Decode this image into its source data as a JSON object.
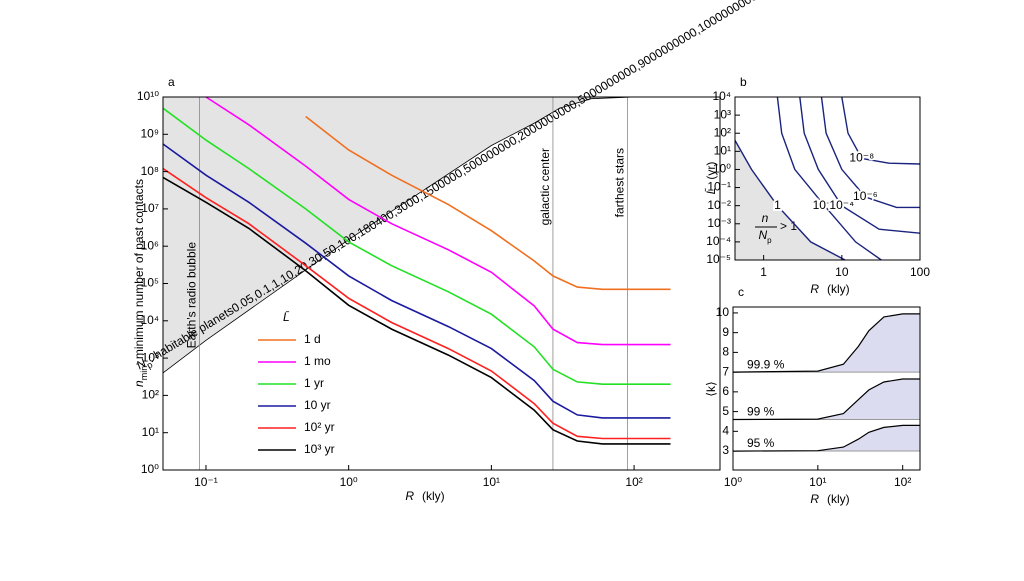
{
  "chart_data": [
    {
      "type": "line",
      "panel_label": "a",
      "xlabel": {
        "symbol": "R",
        "unit": "(kly)"
      },
      "ylabel": {
        "symbol": "n",
        "sub": "min",
        "text": ": minimum number of past contacts"
      },
      "xscale": "log",
      "yscale": "log",
      "xlim": [
        0.05,
        400
      ],
      "ylim": [
        1,
        10000000000
      ],
      "xticks": [
        {
          "value": 0.1,
          "label": "10⁻¹"
        },
        {
          "value": 1,
          "label": "10⁰"
        },
        {
          "value": 10,
          "label": "10¹"
        },
        {
          "value": 100,
          "label": "10²"
        }
      ],
      "yticks": [
        {
          "value": 1,
          "label": "10⁰"
        },
        {
          "value": 10,
          "label": "10¹"
        },
        {
          "value": 100,
          "label": "10²"
        },
        {
          "value": 1000,
          "label": "10³"
        },
        {
          "value": 10000,
          "label": "10⁴"
        },
        {
          "value": 100000,
          "label": "10⁵"
        },
        {
          "value": 1000000,
          "label": "10⁶"
        },
        {
          "value": 10000000,
          "label": "10⁷"
        },
        {
          "value": 100000000,
          "label": "10⁸"
        },
        {
          "value": 1000000000,
          "label": "10⁹"
        },
        {
          "value": 10000000000,
          "label": "10¹⁰"
        }
      ],
      "x": [
        0.05,
        0.1,
        0.2,
        0.5,
        1,
        2,
        5,
        10,
        20,
        27,
        40,
        60,
        100,
        180
      ],
      "legend_title": "L̄",
      "legend": "lower-left",
      "series": [
        {
          "name": "1 d",
          "color": "#f07020",
          "values": [
            null,
            null,
            null,
            3000000000,
            380000000,
            80000000,
            13000000,
            2600000,
            400000,
            160000,
            80000,
            70000,
            70000,
            70000
          ]
        },
        {
          "name": "1 mo",
          "color": "#ff00ff",
          "values": [
            null,
            10000000000,
            1800000000,
            140000000,
            18000000,
            4000000,
            800000,
            200000,
            25000,
            6000,
            2600,
            2300,
            2300,
            2300
          ]
        },
        {
          "name": "1 yr",
          "color": "#22e022",
          "values": [
            5000000000,
            700000000,
            120000000,
            10000000,
            1300000,
            300000,
            60000,
            15000,
            2000,
            500,
            230,
            200,
            200,
            200
          ]
        },
        {
          "name": "10 yr",
          "color": "#1a1aa0",
          "values": [
            550000000,
            80000000,
            15000000,
            1200000,
            160000,
            35000,
            7000,
            1800,
            250,
            70,
            30,
            25,
            25,
            25
          ]
        },
        {
          "name": "10² yr",
          "color": "#ff2020",
          "values": [
            120000000,
            20000000,
            4000000,
            300000,
            40000,
            9000,
            1800,
            450,
            60,
            18,
            8,
            7,
            7,
            7
          ]
        },
        {
          "name": "10³ yr",
          "color": "#000000",
          "values": [
            70000000,
            15000000,
            3000000,
            220000,
            26000,
            6000,
            1200,
            300,
            40,
            12,
            6,
            5,
            5,
            5
          ]
        }
      ],
      "habitable": {
        "symbol": "N",
        "sub": "p",
        "text": ": habitable planets",
        "color": "#e4e4e4",
        "x": [
          0.05,
          0.1,
          1,
          10,
          20,
          30,
          50,
          100,
          180
        ],
        "values": [
          400,
          3000,
          1500000,
          500000000,
          2000000000,
          5000000000,
          9000000000,
          10000000000,
          10000000000
        ]
      },
      "vlines": [
        {
          "x": 0.09,
          "label": "Earth's radio bubble"
        },
        {
          "x": 27,
          "label": "galactic center"
        },
        {
          "x": 90,
          "label": "farthest stars"
        }
      ]
    },
    {
      "type": "contour",
      "panel_label": "b",
      "xlabel": {
        "symbol": "R",
        "unit": "(kly)"
      },
      "ylabel": {
        "symbol": "L̄",
        "unit": "(yr)"
      },
      "xscale": "log",
      "yscale": "log",
      "xlim": [
        0.43,
        100
      ],
      "ylim": [
        1e-05,
        10000
      ],
      "xticks": [
        1,
        10,
        100
      ],
      "yticks": [
        {
          "value": 1e-05,
          "label": "10⁻⁵"
        },
        {
          "value": 0.0001,
          "label": "10⁻⁴"
        },
        {
          "value": 0.001,
          "label": "10⁻³"
        },
        {
          "value": 0.01,
          "label": "10⁻²"
        },
        {
          "value": 0.1,
          "label": "10⁻¹"
        },
        {
          "value": 1,
          "label": "10⁰"
        },
        {
          "value": 10,
          "label": "10¹"
        },
        {
          "value": 100,
          "label": "10²"
        },
        {
          "value": 1000,
          "label": "10³"
        },
        {
          "value": 10000,
          "label": "10⁴"
        }
      ],
      "color": "#1a237e",
      "region": {
        "num": "n",
        "den": "N",
        "den_sub": "p",
        "text": "> 1",
        "color": "#e4e4e4"
      },
      "contours": [
        {
          "name": "1",
          "x": [
            0.43,
            0.7,
            1.5,
            4,
            11
          ],
          "y": [
            40,
            1,
            0.01,
            0.0001,
            1e-05
          ]
        },
        {
          "name": "10⁻²",
          "x": [
            1.5,
            1.7,
            2.5,
            6,
            15,
            32
          ],
          "y": [
            10000,
            100,
            1,
            0.01,
            0.0001,
            1e-05
          ]
        },
        {
          "name": "10⁻⁴",
          "x": [
            2.9,
            3.3,
            5,
            10,
            30,
            100
          ],
          "y": [
            10000,
            100,
            1,
            0.01,
            0.0005,
            0.0003
          ]
        },
        {
          "name": "10⁻⁶",
          "x": [
            5.5,
            6.3,
            10,
            20,
            50,
            100
          ],
          "y": [
            10000,
            100,
            1,
            0.03,
            0.008,
            0.008
          ]
        },
        {
          "name": "10⁻⁸",
          "x": [
            10,
            12,
            18,
            40,
            100
          ],
          "y": [
            10000,
            100,
            4,
            2.2,
            2
          ]
        }
      ]
    },
    {
      "type": "area",
      "panel_label": "c",
      "xlabel": {
        "symbol": "R",
        "unit": "(kly)"
      },
      "ylabel": {
        "text": "⟨k⟩"
      },
      "xscale": "log",
      "yscale": "linear",
      "xlim": [
        1,
        160
      ],
      "ylim": [
        2.04,
        10.3
      ],
      "xticks": [
        {
          "value": 1,
          "label": "10⁰"
        },
        {
          "value": 10,
          "label": "10¹"
        },
        {
          "value": 100,
          "label": "10²"
        }
      ],
      "yticks": [
        3,
        4,
        5,
        6,
        7,
        8,
        9,
        10
      ],
      "x": [
        1,
        10,
        20,
        30,
        40,
        60,
        100,
        160
      ],
      "fill": "#dcdcf0",
      "color": "#000000",
      "series": [
        {
          "name": "99.9 %",
          "values": [
            7,
            7.05,
            7.4,
            8.3,
            9.1,
            9.8,
            9.95,
            9.95
          ]
        },
        {
          "name": "99 %",
          "values": [
            4.6,
            4.62,
            4.9,
            5.6,
            6.1,
            6.5,
            6.65,
            6.65
          ]
        },
        {
          "name": "95 %",
          "values": [
            3,
            3.02,
            3.2,
            3.6,
            3.95,
            4.2,
            4.3,
            4.3
          ]
        }
      ]
    }
  ]
}
